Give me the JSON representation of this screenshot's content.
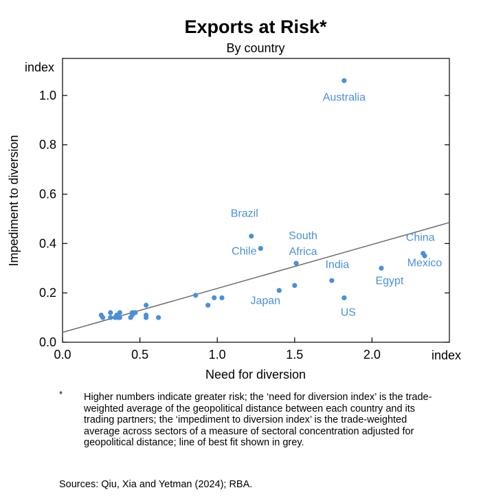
{
  "chart_data": {
    "type": "scatter",
    "title": "Exports at Risk*",
    "subtitle": "By country",
    "xlabel": "Need for diversion",
    "ylabel": "Impediment to diversion",
    "x_unit": "index",
    "y_unit": "index",
    "xlim": [
      0.0,
      2.5
    ],
    "ylim": [
      0.0,
      1.15
    ],
    "x_ticks": [
      0.0,
      0.5,
      1.0,
      1.5,
      2.0
    ],
    "y_ticks": [
      0.0,
      0.2,
      0.4,
      0.6,
      0.8,
      1.0
    ],
    "x_tick_labels": [
      "0.0",
      "0.5",
      "1.0",
      "1.5",
      "2.0"
    ],
    "y_tick_labels": [
      "0.0",
      "0.2",
      "0.4",
      "0.6",
      "0.8",
      "1.0"
    ],
    "grid": false,
    "point_color": "#4a90d9",
    "fit_line_color": "#6b6b6b",
    "best_fit": {
      "intercept": 0.04,
      "slope": 0.178
    },
    "labeled_points": [
      {
        "label": "Australia",
        "x": 1.82,
        "y": 1.06
      },
      {
        "label": "Brazil",
        "x": 1.22,
        "y": 0.43
      },
      {
        "label": "Chile",
        "x": 1.28,
        "y": 0.38
      },
      {
        "label": "South Africa",
        "x": 1.51,
        "y": 0.32
      },
      {
        "label": "Japan",
        "x": 1.4,
        "y": 0.21
      },
      {
        "label": "India",
        "x": 1.74,
        "y": 0.25
      },
      {
        "label": "US",
        "x": 1.82,
        "y": 0.18
      },
      {
        "label": "Egypt",
        "x": 2.06,
        "y": 0.3
      },
      {
        "label": "China",
        "x": 2.33,
        "y": 0.36
      },
      {
        "label": "Mexico",
        "x": 2.34,
        "y": 0.35
      }
    ],
    "other_points": [
      {
        "x": 0.25,
        "y": 0.11
      },
      {
        "x": 0.26,
        "y": 0.1
      },
      {
        "x": 0.31,
        "y": 0.12
      },
      {
        "x": 0.31,
        "y": 0.1
      },
      {
        "x": 0.34,
        "y": 0.1
      },
      {
        "x": 0.35,
        "y": 0.11
      },
      {
        "x": 0.36,
        "y": 0.1
      },
      {
        "x": 0.37,
        "y": 0.12
      },
      {
        "x": 0.37,
        "y": 0.1
      },
      {
        "x": 0.44,
        "y": 0.1
      },
      {
        "x": 0.45,
        "y": 0.12
      },
      {
        "x": 0.45,
        "y": 0.11
      },
      {
        "x": 0.47,
        "y": 0.12
      },
      {
        "x": 0.54,
        "y": 0.15
      },
      {
        "x": 0.54,
        "y": 0.11
      },
      {
        "x": 0.54,
        "y": 0.1
      },
      {
        "x": 0.62,
        "y": 0.1
      },
      {
        "x": 0.86,
        "y": 0.19
      },
      {
        "x": 0.94,
        "y": 0.15
      },
      {
        "x": 0.98,
        "y": 0.18
      },
      {
        "x": 1.03,
        "y": 0.18
      },
      {
        "x": 1.5,
        "y": 0.23
      }
    ]
  },
  "notes": {
    "marker": "*",
    "text": "Higher numbers indicate greater risk; the ‘need for diversion index’ is the trade-weighted average of the geopolitical distance between each country and its trading partners; the ‘impediment to diversion index’ is the trade-weighted average across sectors of a measure of sectoral concentration adjusted for geopolitical distance; line of best fit shown in grey.",
    "sources": "Sources: Qiu, Xia and Yetman (2024); RBA."
  }
}
